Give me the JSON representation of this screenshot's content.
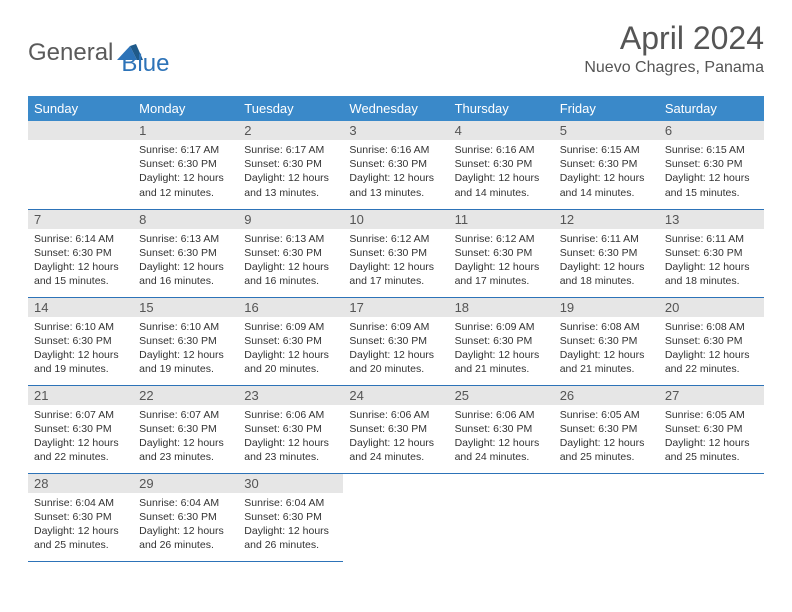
{
  "brand": {
    "part1": "General",
    "part2": "Blue"
  },
  "title": "April 2024",
  "location": "Nuevo Chagres, Panama",
  "header_bg": "#3a89c9",
  "border_color": "#2d73b8",
  "daynum_bg": "#e6e6e6",
  "weekdays": [
    "Sunday",
    "Monday",
    "Tuesday",
    "Wednesday",
    "Thursday",
    "Friday",
    "Saturday"
  ],
  "weeks": [
    [
      null,
      {
        "n": "1",
        "sr": "6:17 AM",
        "ss": "6:30 PM",
        "dl": "12 hours and 12 minutes."
      },
      {
        "n": "2",
        "sr": "6:17 AM",
        "ss": "6:30 PM",
        "dl": "12 hours and 13 minutes."
      },
      {
        "n": "3",
        "sr": "6:16 AM",
        "ss": "6:30 PM",
        "dl": "12 hours and 13 minutes."
      },
      {
        "n": "4",
        "sr": "6:16 AM",
        "ss": "6:30 PM",
        "dl": "12 hours and 14 minutes."
      },
      {
        "n": "5",
        "sr": "6:15 AM",
        "ss": "6:30 PM",
        "dl": "12 hours and 14 minutes."
      },
      {
        "n": "6",
        "sr": "6:15 AM",
        "ss": "6:30 PM",
        "dl": "12 hours and 15 minutes."
      }
    ],
    [
      {
        "n": "7",
        "sr": "6:14 AM",
        "ss": "6:30 PM",
        "dl": "12 hours and 15 minutes."
      },
      {
        "n": "8",
        "sr": "6:13 AM",
        "ss": "6:30 PM",
        "dl": "12 hours and 16 minutes."
      },
      {
        "n": "9",
        "sr": "6:13 AM",
        "ss": "6:30 PM",
        "dl": "12 hours and 16 minutes."
      },
      {
        "n": "10",
        "sr": "6:12 AM",
        "ss": "6:30 PM",
        "dl": "12 hours and 17 minutes."
      },
      {
        "n": "11",
        "sr": "6:12 AM",
        "ss": "6:30 PM",
        "dl": "12 hours and 17 minutes."
      },
      {
        "n": "12",
        "sr": "6:11 AM",
        "ss": "6:30 PM",
        "dl": "12 hours and 18 minutes."
      },
      {
        "n": "13",
        "sr": "6:11 AM",
        "ss": "6:30 PM",
        "dl": "12 hours and 18 minutes."
      }
    ],
    [
      {
        "n": "14",
        "sr": "6:10 AM",
        "ss": "6:30 PM",
        "dl": "12 hours and 19 minutes."
      },
      {
        "n": "15",
        "sr": "6:10 AM",
        "ss": "6:30 PM",
        "dl": "12 hours and 19 minutes."
      },
      {
        "n": "16",
        "sr": "6:09 AM",
        "ss": "6:30 PM",
        "dl": "12 hours and 20 minutes."
      },
      {
        "n": "17",
        "sr": "6:09 AM",
        "ss": "6:30 PM",
        "dl": "12 hours and 20 minutes."
      },
      {
        "n": "18",
        "sr": "6:09 AM",
        "ss": "6:30 PM",
        "dl": "12 hours and 21 minutes."
      },
      {
        "n": "19",
        "sr": "6:08 AM",
        "ss": "6:30 PM",
        "dl": "12 hours and 21 minutes."
      },
      {
        "n": "20",
        "sr": "6:08 AM",
        "ss": "6:30 PM",
        "dl": "12 hours and 22 minutes."
      }
    ],
    [
      {
        "n": "21",
        "sr": "6:07 AM",
        "ss": "6:30 PM",
        "dl": "12 hours and 22 minutes."
      },
      {
        "n": "22",
        "sr": "6:07 AM",
        "ss": "6:30 PM",
        "dl": "12 hours and 23 minutes."
      },
      {
        "n": "23",
        "sr": "6:06 AM",
        "ss": "6:30 PM",
        "dl": "12 hours and 23 minutes."
      },
      {
        "n": "24",
        "sr": "6:06 AM",
        "ss": "6:30 PM",
        "dl": "12 hours and 24 minutes."
      },
      {
        "n": "25",
        "sr": "6:06 AM",
        "ss": "6:30 PM",
        "dl": "12 hours and 24 minutes."
      },
      {
        "n": "26",
        "sr": "6:05 AM",
        "ss": "6:30 PM",
        "dl": "12 hours and 25 minutes."
      },
      {
        "n": "27",
        "sr": "6:05 AM",
        "ss": "6:30 PM",
        "dl": "12 hours and 25 minutes."
      }
    ],
    [
      {
        "n": "28",
        "sr": "6:04 AM",
        "ss": "6:30 PM",
        "dl": "12 hours and 25 minutes."
      },
      {
        "n": "29",
        "sr": "6:04 AM",
        "ss": "6:30 PM",
        "dl": "12 hours and 26 minutes."
      },
      {
        "n": "30",
        "sr": "6:04 AM",
        "ss": "6:30 PM",
        "dl": "12 hours and 26 minutes."
      },
      null,
      null,
      null,
      null
    ]
  ],
  "labels": {
    "sunrise": "Sunrise:",
    "sunset": "Sunset:",
    "daylight": "Daylight:"
  }
}
